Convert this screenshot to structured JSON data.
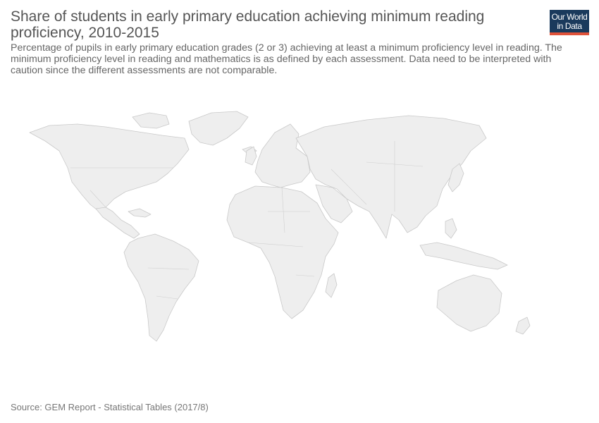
{
  "header": {
    "title": "Share of students in early primary education achieving minimum reading proficiency, 2010-2015",
    "subtitle": "Percentage of pupils in early primary education grades (2 or 3) achieving at least a minimum proficiency level in reading. The minimum proficiency level in reading and mathematics is as defined by each assessment. Data need to be interpreted with caution since the different assessments are not comparable."
  },
  "logo": {
    "line1": "Our World",
    "line2": "in Data",
    "bg_color": "#1a3a5c",
    "accent_color": "#e0533a"
  },
  "map": {
    "no_data_color": "#eeeeee",
    "border_color": "#c9c9c9"
  },
  "footer": {
    "source": "Source: GEM Report - Statistical Tables (2017/8)"
  }
}
